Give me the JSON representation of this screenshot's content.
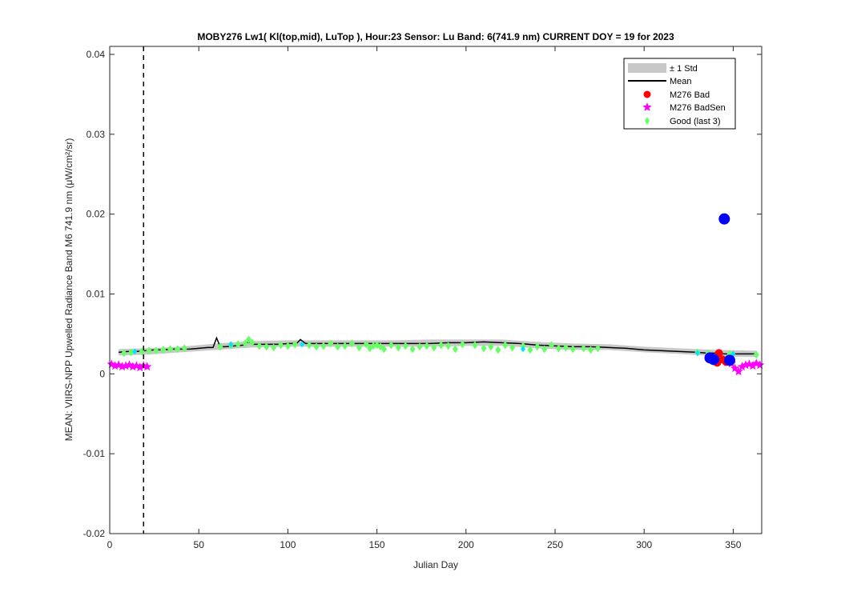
{
  "chart_data": {
    "type": "scatter",
    "title": "MOBY276   Lw1( Kl(top,mid), LuTop ),   Hour:23 Sensor: Lu Band: 6(741.9 nm)   CURRENT DOY = 19 for 2023",
    "xlabel": "Julian Day",
    "ylabel": "MEAN: VIIRS-NPP Upwelled Radiance Band M6 741.9 nm (μW/cm²/sr)",
    "xlim": [
      0,
      366
    ],
    "ylim": [
      -0.02,
      0.041
    ],
    "xticks": [
      0,
      50,
      100,
      150,
      200,
      250,
      300,
      350
    ],
    "xtick_labels": [
      "0",
      "50",
      "100",
      "150",
      "200",
      "250",
      "300",
      "350"
    ],
    "yticks": [
      -0.02,
      -0.01,
      0,
      0.01,
      0.02,
      0.03,
      0.04
    ],
    "ytick_labels": [
      "-0.02",
      "-0.01",
      "0",
      "0.01",
      "0.02",
      "0.03",
      "0.04"
    ],
    "grid": false,
    "legend_position": "top-right",
    "current_doy": 19,
    "colors": {
      "std_band": "#c8c8c8",
      "mean_line": "#000000",
      "bad": "#ff0000",
      "badsen": "#ff00ff",
      "good": "#66ff66",
      "cyan": "#00e5ff",
      "blue": "#0000ff",
      "vline": "#000000"
    },
    "legend": [
      {
        "label": "± 1 Std",
        "marker": "band"
      },
      {
        "label": "Mean",
        "marker": "line"
      },
      {
        "label": "M276 Bad",
        "marker": "circle"
      },
      {
        "label": "M276 BadSen",
        "marker": "star"
      },
      {
        "label": "Good (last 3)",
        "marker": "diamond"
      }
    ],
    "mean_series": {
      "name": "Mean",
      "x": [
        5,
        10,
        15,
        20,
        25,
        30,
        35,
        40,
        45,
        50,
        55,
        58,
        60,
        62,
        65,
        70,
        75,
        78,
        80,
        85,
        90,
        95,
        100,
        105,
        107,
        110,
        115,
        120,
        130,
        140,
        150,
        160,
        170,
        180,
        190,
        200,
        210,
        220,
        230,
        240,
        250,
        260,
        270,
        280,
        290,
        300,
        310,
        320,
        330,
        335,
        340,
        345,
        350,
        355,
        360,
        363
      ],
      "y": [
        0.0027,
        0.0028,
        0.0028,
        0.0029,
        0.003,
        0.003,
        0.0031,
        0.0031,
        0.0031,
        0.0032,
        0.0033,
        0.0033,
        0.0045,
        0.0034,
        0.0034,
        0.0035,
        0.0036,
        0.004,
        0.0037,
        0.0037,
        0.0037,
        0.0037,
        0.0038,
        0.0038,
        0.0043,
        0.0038,
        0.0038,
        0.0038,
        0.0038,
        0.0038,
        0.0038,
        0.0038,
        0.0038,
        0.0038,
        0.0039,
        0.0039,
        0.004,
        0.0039,
        0.0038,
        0.0036,
        0.0035,
        0.0034,
        0.0034,
        0.0033,
        0.0032,
        0.003,
        0.0029,
        0.0028,
        0.0027,
        0.0026,
        0.0026,
        0.0025,
        0.0025,
        0.0025,
        0.0025,
        0.0025
      ]
    },
    "std_band": {
      "name": "± 1 Std",
      "x": [
        5,
        20,
        40,
        60,
        80,
        100,
        120,
        140,
        160,
        180,
        200,
        220,
        240,
        260,
        280,
        300,
        320,
        340,
        363
      ],
      "upper": [
        0.0031,
        0.0032,
        0.0034,
        0.0038,
        0.0041,
        0.0042,
        0.0042,
        0.0042,
        0.0042,
        0.0043,
        0.0043,
        0.0043,
        0.004,
        0.0038,
        0.0037,
        0.0034,
        0.0032,
        0.003,
        0.0029
      ],
      "lower": [
        0.0023,
        0.0024,
        0.0027,
        0.003,
        0.0033,
        0.0034,
        0.0034,
        0.0034,
        0.0034,
        0.0034,
        0.0035,
        0.0035,
        0.0032,
        0.003,
        0.003,
        0.0027,
        0.0025,
        0.0022,
        0.0021
      ]
    },
    "good_series": {
      "name": "Good (last 3)",
      "x": [
        8,
        12,
        18,
        22,
        26,
        30,
        34,
        38,
        42,
        62,
        68,
        72,
        76,
        78,
        80,
        84,
        88,
        92,
        96,
        100,
        104,
        112,
        116,
        120,
        124,
        128,
        132,
        136,
        140,
        144,
        146,
        148,
        150,
        152,
        154,
        158,
        162,
        166,
        170,
        174,
        178,
        182,
        186,
        190,
        194,
        198,
        205,
        210,
        214,
        218,
        222,
        226,
        232,
        236,
        240,
        244,
        248,
        252,
        256,
        260,
        266,
        270,
        274,
        330,
        336,
        342,
        348,
        363
      ],
      "y": [
        0.0026,
        0.0027,
        0.0028,
        0.0029,
        0.0029,
        0.003,
        0.0031,
        0.0031,
        0.0032,
        0.0034,
        0.0036,
        0.0037,
        0.0038,
        0.0043,
        0.0039,
        0.0035,
        0.0034,
        0.0033,
        0.0036,
        0.0035,
        0.0037,
        0.0036,
        0.0034,
        0.0035,
        0.0038,
        0.0034,
        0.0035,
        0.0038,
        0.0033,
        0.0037,
        0.0032,
        0.0035,
        0.0036,
        0.0034,
        0.0031,
        0.0036,
        0.0033,
        0.0035,
        0.0031,
        0.0034,
        0.0035,
        0.0033,
        0.0036,
        0.0035,
        0.0031,
        0.0037,
        0.0036,
        0.0032,
        0.0034,
        0.003,
        0.0036,
        0.0033,
        0.0035,
        0.003,
        0.0034,
        0.0031,
        0.0036,
        0.0032,
        0.0033,
        0.0031,
        0.0032,
        0.003,
        0.0032,
        0.0027,
        0.0026,
        0.0026,
        0.0025,
        0.0024
      ]
    },
    "cyan_series": {
      "name": "",
      "x": [
        14,
        68,
        108,
        232,
        330,
        350
      ],
      "y": [
        0.0028,
        0.0037,
        0.0037,
        0.0031,
        0.0026,
        0.0025
      ]
    },
    "badsen_series": {
      "name": "M276 BadSen",
      "x": [
        1,
        3,
        5,
        7,
        9,
        11,
        13,
        15,
        17,
        19,
        21,
        349,
        351,
        353,
        355,
        357,
        359,
        361,
        363,
        365
      ],
      "y": [
        0.0012,
        0.001,
        0.0011,
        0.0009,
        0.001,
        0.0011,
        0.0009,
        0.001,
        0.0008,
        0.001,
        0.0009,
        0.0013,
        0.0007,
        0.0003,
        0.0009,
        0.0011,
        0.0012,
        0.001,
        0.0013,
        0.0011
      ]
    },
    "bad_series": {
      "name": "M276 Bad",
      "x": [
        340,
        341,
        342,
        344,
        346
      ],
      "y": [
        0.002,
        0.0014,
        0.0026,
        0.0018,
        0.0015
      ]
    },
    "blue_series": {
      "name": "",
      "x": [
        337,
        339,
        345,
        348
      ],
      "y": [
        0.002,
        0.0018,
        0.0194,
        0.0017
      ]
    }
  }
}
